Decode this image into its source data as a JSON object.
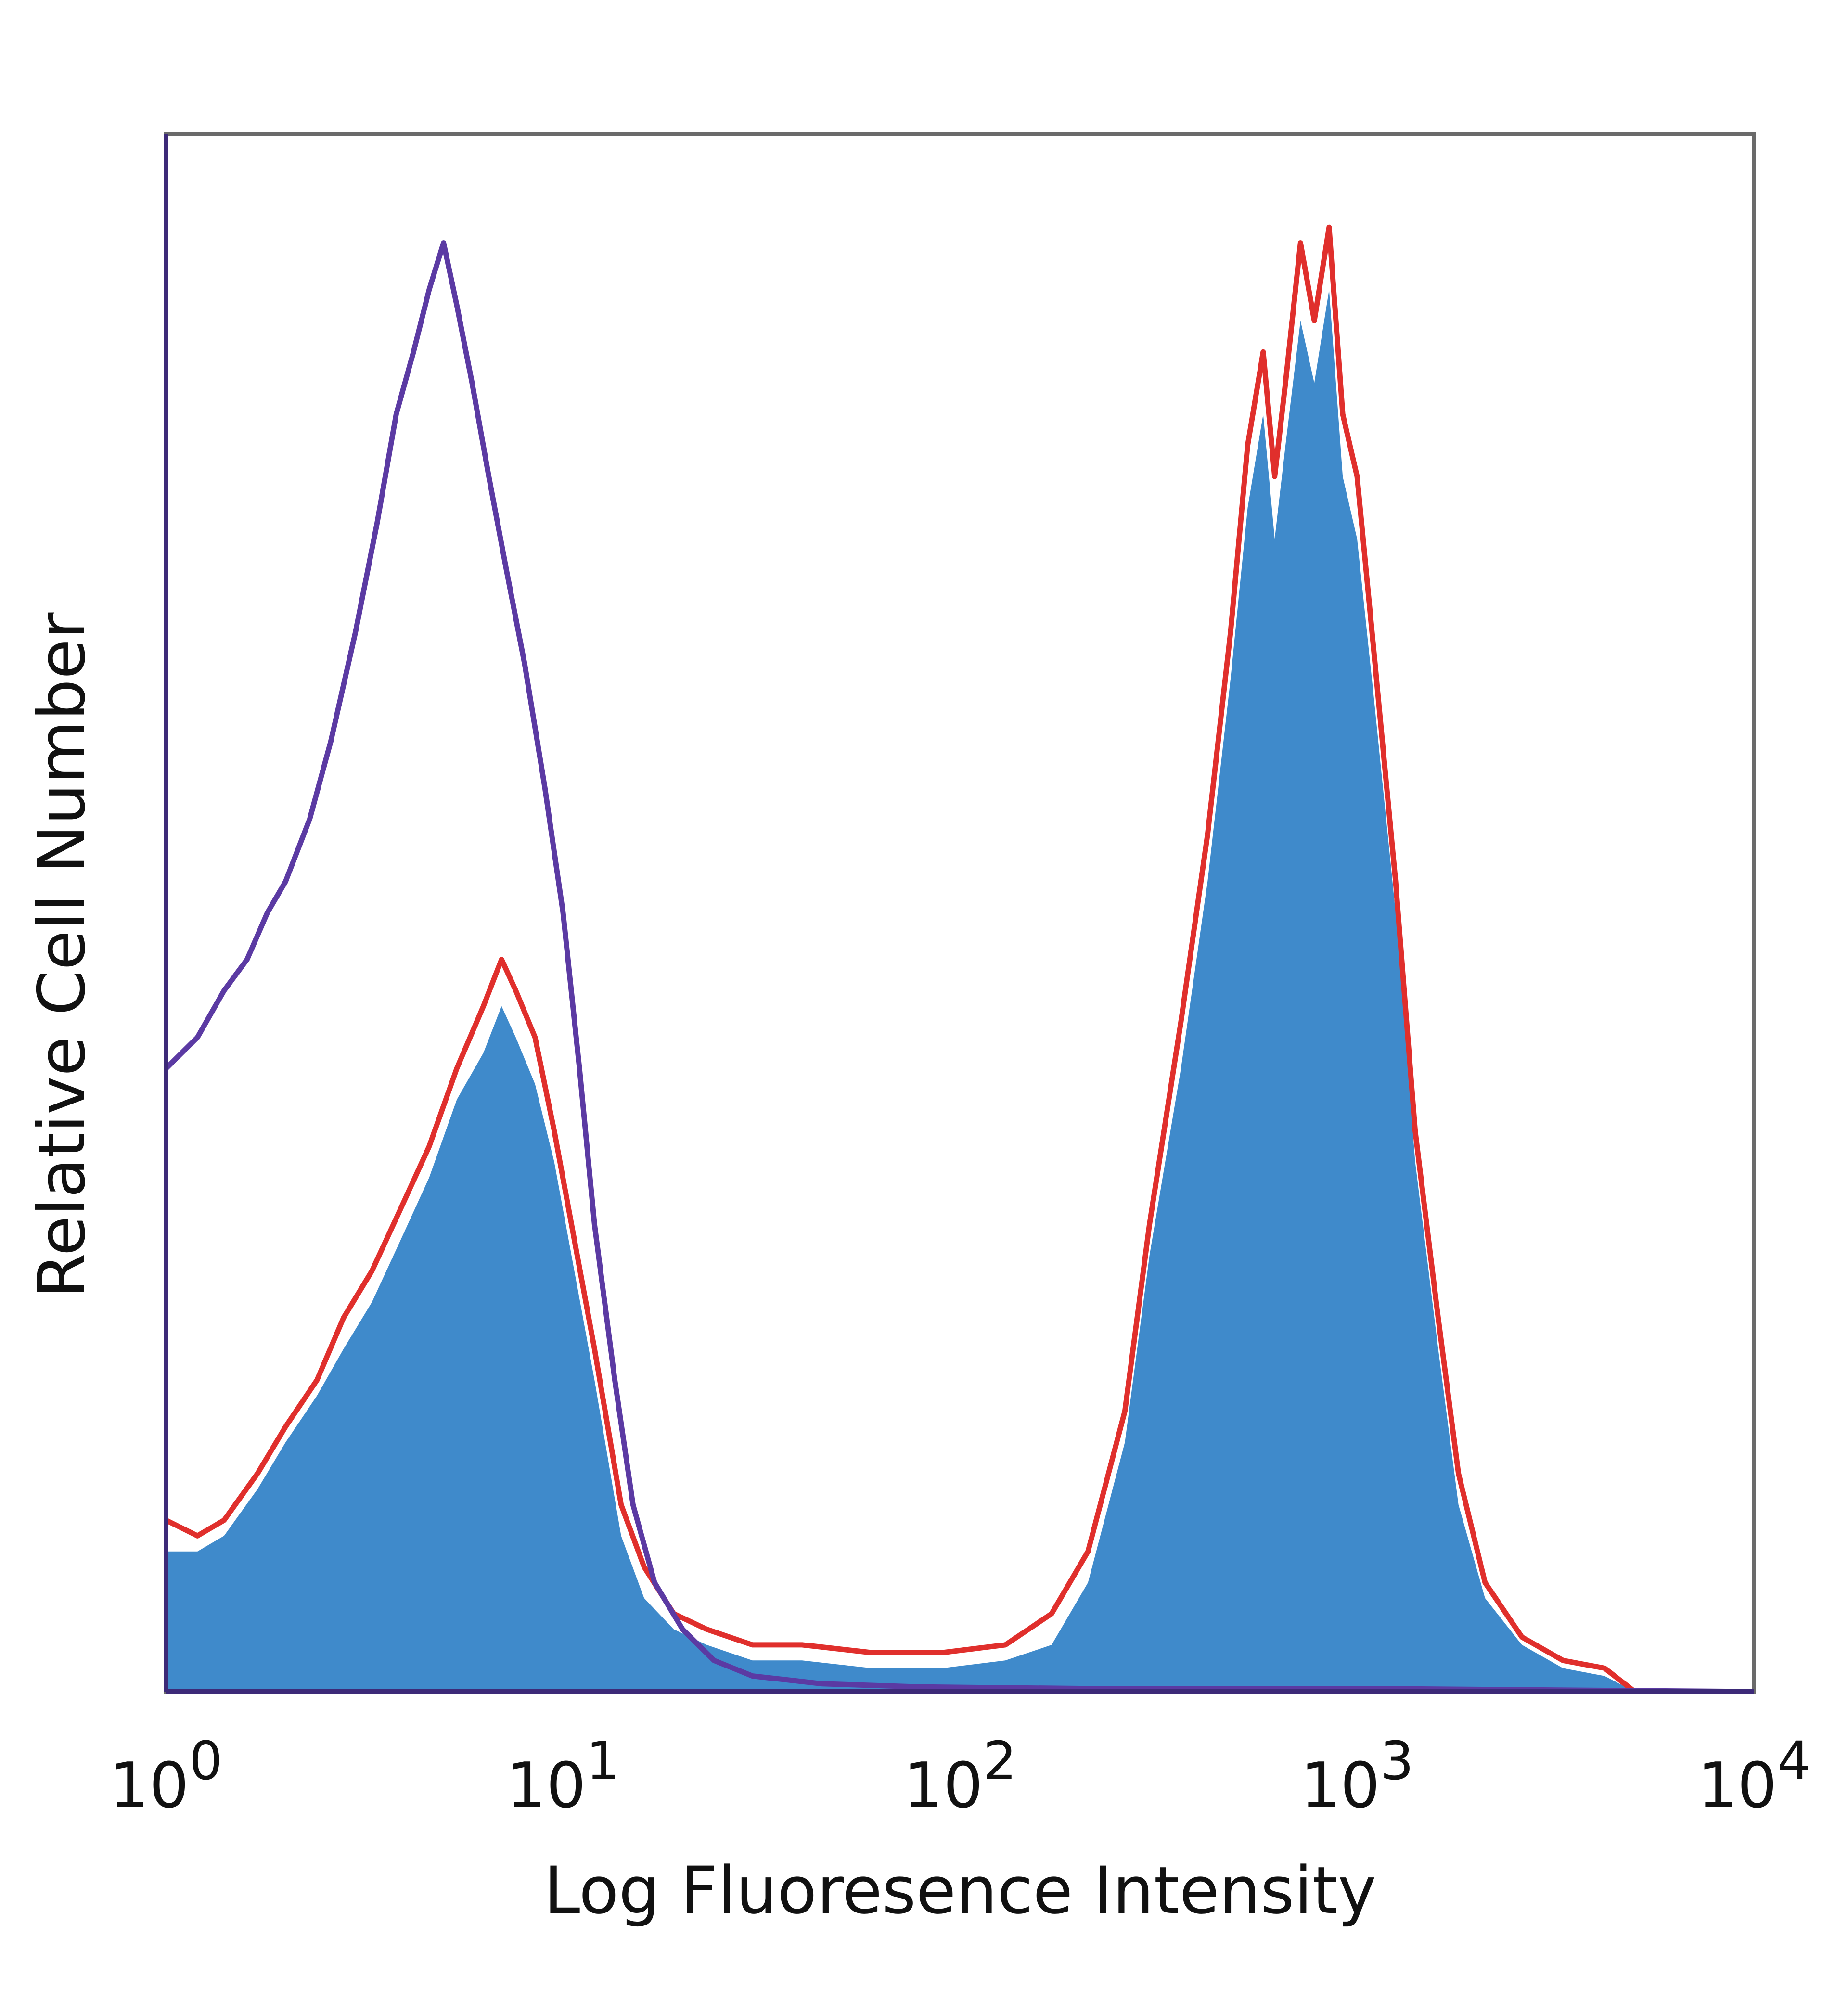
{
  "chart_data": {
    "type": "area",
    "xlabel": "Log Fluoresence Intensity",
    "ylabel": "Relative Cell Number",
    "x_scale": "log",
    "xlim": [
      1,
      10000
    ],
    "ylim": [
      0,
      100
    ],
    "grid": false,
    "legend": "none",
    "x_ticks": [
      {
        "value": 1,
        "base": "10",
        "exp": "0"
      },
      {
        "value": 10,
        "base": "10",
        "exp": "1"
      },
      {
        "value": 100,
        "base": "10",
        "exp": "2"
      },
      {
        "value": 1000,
        "base": "10",
        "exp": "3"
      },
      {
        "value": 10000,
        "base": "10",
        "exp": "4"
      }
    ],
    "series": [
      {
        "style": "filled",
        "color": "#3f8acb",
        "points": [
          [
            1.0,
            9
          ],
          [
            1.2,
            9
          ],
          [
            1.4,
            10
          ],
          [
            1.7,
            13
          ],
          [
            2.0,
            16
          ],
          [
            2.4,
            19
          ],
          [
            2.8,
            22
          ],
          [
            3.3,
            25
          ],
          [
            3.9,
            29
          ],
          [
            4.6,
            33
          ],
          [
            5.4,
            38
          ],
          [
            6.3,
            41
          ],
          [
            7.0,
            44
          ],
          [
            7.6,
            42
          ],
          [
            8.5,
            39
          ],
          [
            9.5,
            34
          ],
          [
            10.5,
            28
          ],
          [
            12,
            20
          ],
          [
            14,
            10
          ],
          [
            16,
            6
          ],
          [
            19,
            4
          ],
          [
            23,
            3
          ],
          [
            30,
            2
          ],
          [
            40,
            2
          ],
          [
            60,
            1.5
          ],
          [
            90,
            1.5
          ],
          [
            130,
            2
          ],
          [
            170,
            3
          ],
          [
            210,
            7
          ],
          [
            260,
            16
          ],
          [
            300,
            28
          ],
          [
            360,
            40
          ],
          [
            420,
            52
          ],
          [
            480,
            65
          ],
          [
            530,
            76
          ],
          [
            580,
            82
          ],
          [
            620,
            74
          ],
          [
            660,
            80
          ],
          [
            720,
            88
          ],
          [
            780,
            84
          ],
          [
            850,
            90
          ],
          [
            920,
            78
          ],
          [
            1000,
            74
          ],
          [
            1100,
            64
          ],
          [
            1250,
            50
          ],
          [
            1400,
            34
          ],
          [
            1600,
            22
          ],
          [
            1800,
            12
          ],
          [
            2100,
            6
          ],
          [
            2600,
            3
          ],
          [
            3300,
            1.5
          ],
          [
            4200,
            1
          ],
          [
            5000,
            0
          ]
        ]
      },
      {
        "style": "line",
        "color": "#e02f2c",
        "points": [
          [
            1.0,
            11
          ],
          [
            1.2,
            10
          ],
          [
            1.4,
            11
          ],
          [
            1.7,
            14
          ],
          [
            2.0,
            17
          ],
          [
            2.4,
            20
          ],
          [
            2.8,
            24
          ],
          [
            3.3,
            27
          ],
          [
            3.9,
            31
          ],
          [
            4.6,
            35
          ],
          [
            5.4,
            40
          ],
          [
            6.3,
            44
          ],
          [
            7.0,
            47
          ],
          [
            7.6,
            45
          ],
          [
            8.5,
            42
          ],
          [
            9.5,
            36
          ],
          [
            10.5,
            30
          ],
          [
            12,
            22
          ],
          [
            14,
            12
          ],
          [
            16,
            8
          ],
          [
            19,
            5
          ],
          [
            23,
            4
          ],
          [
            30,
            3
          ],
          [
            40,
            3
          ],
          [
            60,
            2.5
          ],
          [
            90,
            2.5
          ],
          [
            130,
            3
          ],
          [
            170,
            5
          ],
          [
            210,
            9
          ],
          [
            260,
            18
          ],
          [
            300,
            30
          ],
          [
            360,
            43
          ],
          [
            420,
            55
          ],
          [
            480,
            68
          ],
          [
            530,
            80
          ],
          [
            580,
            86
          ],
          [
            620,
            78
          ],
          [
            660,
            84
          ],
          [
            720,
            93
          ],
          [
            780,
            88
          ],
          [
            850,
            94
          ],
          [
            920,
            82
          ],
          [
            1000,
            78
          ],
          [
            1100,
            67
          ],
          [
            1250,
            52
          ],
          [
            1400,
            36
          ],
          [
            1600,
            24
          ],
          [
            1800,
            14
          ],
          [
            2100,
            7
          ],
          [
            2600,
            3.5
          ],
          [
            3300,
            2
          ],
          [
            4200,
            1.5
          ],
          [
            5000,
            0
          ]
        ]
      },
      {
        "style": "line",
        "color": "#5b3aa3",
        "points": [
          [
            1.0,
            40
          ],
          [
            1.2,
            42
          ],
          [
            1.4,
            45
          ],
          [
            1.6,
            47
          ],
          [
            1.8,
            50
          ],
          [
            2.0,
            52
          ],
          [
            2.3,
            56
          ],
          [
            2.6,
            61
          ],
          [
            3.0,
            68
          ],
          [
            3.4,
            75
          ],
          [
            3.8,
            82
          ],
          [
            4.2,
            86
          ],
          [
            4.6,
            90
          ],
          [
            5.0,
            93
          ],
          [
            5.4,
            89
          ],
          [
            5.9,
            84
          ],
          [
            6.5,
            78
          ],
          [
            7.2,
            72
          ],
          [
            8.0,
            66
          ],
          [
            9.0,
            58
          ],
          [
            10,
            50
          ],
          [
            11,
            40
          ],
          [
            12,
            30
          ],
          [
            13.5,
            20
          ],
          [
            15,
            12
          ],
          [
            17,
            7
          ],
          [
            20,
            4
          ],
          [
            24,
            2
          ],
          [
            30,
            1
          ],
          [
            45,
            0.5
          ],
          [
            80,
            0.3
          ],
          [
            200,
            0.2
          ],
          [
            1000,
            0.2
          ],
          [
            10000,
            0
          ]
        ]
      }
    ]
  }
}
